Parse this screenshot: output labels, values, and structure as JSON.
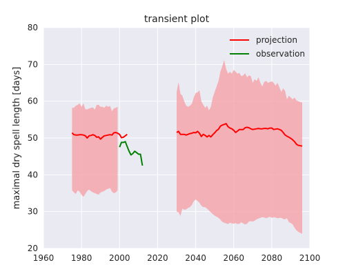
{
  "chart_data": {
    "type": "line",
    "title": "transient plot",
    "xlabel": "",
    "ylabel": "maximal dry spell length [days]",
    "xlim": [
      1960,
      2100
    ],
    "ylim": [
      20,
      80
    ],
    "xticks": [
      1960,
      1980,
      2000,
      2020,
      2040,
      2060,
      2080,
      2100
    ],
    "yticks": [
      20,
      30,
      40,
      50,
      60,
      70,
      80
    ],
    "grid": true,
    "legend_position": "top-right",
    "colors": {
      "background": "#eaeaf2",
      "grid": "#ffffff",
      "projection": "#ff0000",
      "band": "#f4a7ad",
      "observation": "#008000"
    },
    "series": [
      {
        "name": "projection",
        "segments": [
          {
            "x": [
              1975,
              1976,
              1977,
              1978,
              1979,
              1980,
              1981,
              1982,
              1983,
              1984,
              1985,
              1986,
              1987,
              1988,
              1989,
              1990,
              1991,
              1992,
              1993,
              1994,
              1995,
              1996,
              1997,
              1998,
              1999,
              2000,
              2001,
              2002,
              2003,
              2004
            ],
            "y": [
              51.4,
              50.9,
              50.8,
              50.8,
              50.9,
              50.9,
              50.8,
              50.6,
              50.0,
              50.6,
              50.7,
              50.9,
              50.7,
              50.2,
              50.3,
              49.7,
              50.2,
              50.6,
              50.7,
              50.8,
              50.9,
              50.8,
              51.4,
              51.5,
              51.3,
              51.0,
              50.1,
              50.2,
              50.6,
              51.0
            ]
          },
          {
            "x": [
              2030,
              2031,
              2032,
              2033,
              2034,
              2035,
              2036,
              2037,
              2038,
              2039,
              2040,
              2041,
              2042,
              2043,
              2044,
              2045,
              2046,
              2047,
              2048,
              2049,
              2050,
              2051,
              2052,
              2053,
              2054,
              2055,
              2056,
              2057,
              2058,
              2059,
              2060,
              2061,
              2062,
              2063,
              2064,
              2065,
              2066,
              2067,
              2068,
              2069,
              2070,
              2071,
              2072,
              2073,
              2074,
              2075,
              2076,
              2077,
              2078,
              2079,
              2080,
              2081,
              2082,
              2083,
              2084,
              2085,
              2086,
              2087,
              2088,
              2089,
              2090,
              2091,
              2092,
              2093,
              2094,
              2095,
              2096
            ],
            "y": [
              51.5,
              51.8,
              51.0,
              51.0,
              51.0,
              50.8,
              51.0,
              51.2,
              51.3,
              51.5,
              51.4,
              51.8,
              51.3,
              50.4,
              51.0,
              50.7,
              50.3,
              50.7,
              50.3,
              50.9,
              51.4,
              52.0,
              52.4,
              53.2,
              53.5,
              53.7,
              53.9,
              53.1,
              52.7,
              52.5,
              52.1,
              51.5,
              51.9,
              52.3,
              52.3,
              52.3,
              52.8,
              52.9,
              52.8,
              52.5,
              52.3,
              52.4,
              52.5,
              52.6,
              52.5,
              52.5,
              52.6,
              52.6,
              52.5,
              52.7,
              52.7,
              52.3,
              52.4,
              52.5,
              52.3,
              52.1,
              51.5,
              50.8,
              50.5,
              50.2,
              49.9,
              49.5,
              49.0,
              48.3,
              48.0,
              47.9,
              47.8
            ]
          }
        ]
      },
      {
        "name": "observation",
        "segments": [
          {
            "x": [
              2000,
              2001,
              2002,
              2003,
              2004,
              2005,
              2006,
              2007,
              2008,
              2009,
              2010,
              2011,
              2012
            ],
            "y": [
              47.5,
              48.8,
              48.8,
              49.0,
              47.7,
              46.4,
              45.4,
              45.8,
              46.4,
              46.0,
              45.6,
              45.6,
              42.5
            ]
          }
        ]
      },
      {
        "band_of": "projection",
        "segments": [
          {
            "x": [
              1975,
              1976,
              1977,
              1978,
              1979,
              1980,
              1981,
              1982,
              1983,
              1984,
              1985,
              1986,
              1987,
              1988,
              1989,
              1990,
              1991,
              1992,
              1993,
              1994,
              1995,
              1996,
              1997,
              1998,
              1999
            ],
            "upper": [
              58.2,
              58.2,
              58.8,
              59.0,
              59.4,
              58.5,
              59.4,
              57.8,
              57.8,
              58.0,
              58.2,
              58.3,
              57.7,
              59.0,
              59.0,
              58.5,
              58.5,
              58.2,
              58.8,
              58.5,
              58.7,
              57.3,
              58.0,
              58.2,
              58.5
            ],
            "lower": [
              35.8,
              35.2,
              34.8,
              35.8,
              35.4,
              34.6,
              34.0,
              34.8,
              35.6,
              36.0,
              35.5,
              35.2,
              35.0,
              34.8,
              34.6,
              35.2,
              35.4,
              35.6,
              36.0,
              36.2,
              36.4,
              35.4,
              35.0,
              35.2,
              35.8
            ]
          },
          {
            "x": [
              2030,
              2031,
              2032,
              2033,
              2034,
              2035,
              2036,
              2037,
              2038,
              2039,
              2040,
              2041,
              2042,
              2043,
              2044,
              2045,
              2046,
              2047,
              2048,
              2049,
              2050,
              2051,
              2052,
              2053,
              2054,
              2055,
              2056,
              2057,
              2058,
              2059,
              2060,
              2061,
              2062,
              2063,
              2064,
              2065,
              2066,
              2067,
              2068,
              2069,
              2070,
              2071,
              2072,
              2073,
              2074,
              2075,
              2076,
              2077,
              2078,
              2079,
              2080,
              2081,
              2082,
              2083,
              2084,
              2085,
              2086,
              2087,
              2088,
              2089,
              2090,
              2091,
              2092,
              2093,
              2094,
              2095,
              2096
            ],
            "upper": [
              62.5,
              65.2,
              62.0,
              61.5,
              60.0,
              58.8,
              58.5,
              58.8,
              59.3,
              61.0,
              62.2,
              62.4,
              63.0,
              60.0,
              59.0,
              58.2,
              58.8,
              57.5,
              58.5,
              61.0,
              62.5,
              64.0,
              65.5,
              68.0,
              69.5,
              71.2,
              68.8,
              67.5,
              68.0,
              67.5,
              68.5,
              68.0,
              67.5,
              67.7,
              66.8,
              67.0,
              67.6,
              66.5,
              67.0,
              66.8,
              65.0,
              66.0,
              65.5,
              66.5,
              65.0,
              64.0,
              65.2,
              65.5,
              65.0,
              65.2,
              65.4,
              65.0,
              64.2,
              65.0,
              63.8,
              62.5,
              63.5,
              62.8,
              60.5,
              61.5,
              61.0,
              60.5,
              61.0,
              60.2,
              60.0,
              59.8,
              59.6
            ],
            "lower": [
              30.0,
              29.8,
              28.8,
              30.8,
              30.5,
              30.6,
              31.0,
              31.2,
              31.8,
              32.8,
              33.3,
              32.9,
              32.4,
              31.6,
              31.2,
              31.2,
              30.8,
              30.3,
              29.8,
              29.3,
              28.9,
              28.6,
              28.3,
              27.8,
              27.2,
              27.0,
              26.8,
              26.6,
              27.0,
              26.8,
              26.7,
              26.9,
              26.6,
              26.7,
              27.1,
              26.8,
              26.5,
              26.7,
              27.3,
              27.4,
              27.3,
              27.5,
              27.9,
              28.1,
              28.3,
              28.5,
              28.4,
              28.2,
              28.4,
              28.6,
              28.3,
              28.5,
              28.4,
              28.2,
              28.3,
              28.3,
              28.0,
              27.9,
              28.2,
              27.1,
              26.9,
              26.5,
              25.6,
              24.9,
              24.5,
              24.2,
              24.0
            ]
          }
        ]
      }
    ]
  }
}
